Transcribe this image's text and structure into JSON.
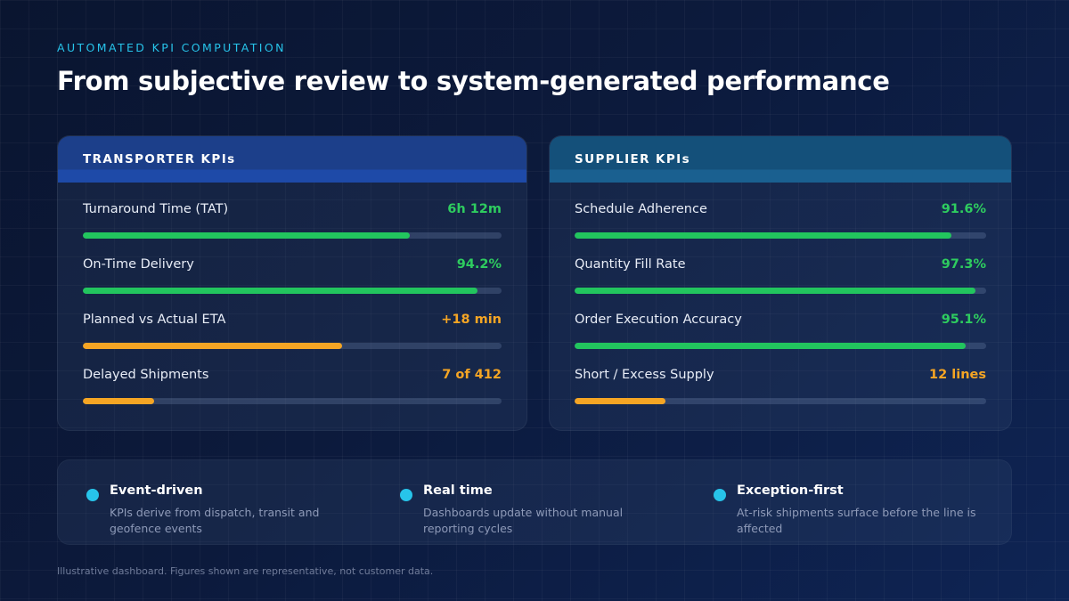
{
  "eyebrow": "AUTOMATED KPI COMPUTATION",
  "title": "From subjective review to system-generated performance",
  "transporter": {
    "header": "TRANSPORTER KPIs",
    "kpis": [
      {
        "label": "Turnaround Time (TAT)",
        "value": "6h 12m",
        "level": 0.78,
        "color": "green"
      },
      {
        "label": "On-Time Delivery",
        "value": "94.2%",
        "level": 0.942,
        "color": "green"
      },
      {
        "label": "Planned vs Actual ETA",
        "value": "+18 min",
        "level": 0.62,
        "color": "orange"
      },
      {
        "label": "Delayed Shipments",
        "value": "7 of 412",
        "level": 0.17,
        "color": "orange"
      }
    ]
  },
  "supplier": {
    "header": "SUPPLIER KPIs",
    "kpis": [
      {
        "label": "Schedule Adherence",
        "value": "91.6%",
        "level": 0.916,
        "color": "green"
      },
      {
        "label": "Quantity Fill Rate",
        "value": "97.3%",
        "level": 0.973,
        "color": "green"
      },
      {
        "label": "Order Execution Accuracy",
        "value": "95.1%",
        "level": 0.951,
        "color": "green"
      },
      {
        "label": "Short / Excess Supply",
        "value": "12 lines",
        "level": 0.22,
        "color": "orange"
      }
    ]
  },
  "features": [
    {
      "title": "Event-driven",
      "desc": "KPIs derive from dispatch, transit and geofence events"
    },
    {
      "title": "Real time",
      "desc": "Dashboards update without manual reporting cycles"
    },
    {
      "title": "Exception-first",
      "desc": "At-risk shipments surface before the line is affected"
    }
  ],
  "footnote": "Illustrative dashboard. Figures shown are representative, not customer data.",
  "colors": {
    "accent": "#27c4ea",
    "green": "#22c55e",
    "orange": "#f5a524"
  }
}
